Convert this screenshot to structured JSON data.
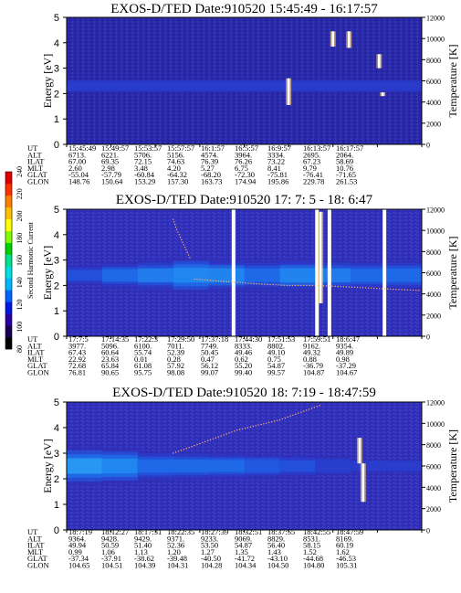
{
  "chart_data": [
    {
      "type": "heatmap",
      "title": "EXOS-D/TED   Date:910520  15:45:49 - 16:17:57",
      "ylabel": "Energy [eV]",
      "y2label": "Temperature [K]",
      "ylim": [
        0,
        5
      ],
      "y2lim": [
        0,
        12000
      ],
      "yticks": [
        "0",
        "1",
        "2",
        "3",
        "4",
        "5"
      ],
      "y2ticks": [
        "0",
        "2000",
        "4000",
        "6000",
        "8000",
        "10000",
        "12000"
      ],
      "band_profile": [
        0.18,
        0.18,
        0.18,
        0.19,
        0.18,
        0.18,
        0.18,
        0.19,
        0.18,
        0.18
      ],
      "band_center_ev": 2.3,
      "traces": [],
      "gaps": [],
      "spikes": [
        {
          "t": 0.625,
          "ev_low": 1.55,
          "ev_high": 2.6
        },
        {
          "t": 0.75,
          "ev_low": 3.85,
          "ev_high": 4.45
        },
        {
          "t": 0.795,
          "ev_low": 3.8,
          "ev_high": 4.45
        },
        {
          "t": 0.88,
          "ev_low": 3.0,
          "ev_high": 3.55
        },
        {
          "t": 0.89,
          "ev_low": 1.9,
          "ev_high": 2.05
        }
      ],
      "table": {
        "labels": [
          "UT",
          "ALT",
          "ILAT",
          "MLT",
          "GLAT",
          "GLON"
        ],
        "columns": [
          [
            "15:45:49",
            "6713.",
            "67.00",
            "2.60",
            "-55.04",
            "148.76"
          ],
          [
            "15:49:57",
            "6221.",
            "69.35",
            "2.98",
            "-57.79",
            "150.64"
          ],
          [
            "15:53:57",
            "5706.",
            "72.15",
            "3.48",
            "-60.84",
            "153.29"
          ],
          [
            "15:57:57",
            "5156.",
            "74.63",
            "4.20",
            "-64.32",
            "157.30"
          ],
          [
            "16:1:57",
            "4574.",
            "76.39",
            "5.27",
            "-68.20",
            "163.73"
          ],
          [
            "16:5:57",
            "3964.",
            "76.26",
            "6.75",
            "-72.30",
            "174.94"
          ],
          [
            "16:9:57",
            "3334.",
            "73.22",
            "8.41",
            "-75.81",
            "195.86"
          ],
          [
            "16:13:57",
            "2695.",
            "67.23",
            "9.79",
            "-76.41",
            "229.78"
          ],
          [
            "16:17:57",
            "2064.",
            "58.69",
            "10.76",
            "-71.65",
            "261.53"
          ]
        ]
      }
    },
    {
      "type": "heatmap",
      "title": "EXOS-D/TED   Date:910520  17: 7: 5 - 18: 6:47",
      "ylabel": "Energy [eV]",
      "y2label": "Temperature [K]",
      "ylim": [
        0,
        5
      ],
      "y2lim": [
        0,
        12000
      ],
      "yticks": [
        "0",
        "1",
        "2",
        "3",
        "4",
        "5"
      ],
      "y2ticks": [
        "0",
        "2000",
        "4000",
        "6000",
        "8000",
        "10000",
        "12000"
      ],
      "band_profile": [
        0.35,
        0.55,
        0.75,
        0.85,
        0.78,
        0.7,
        0.8,
        0.75,
        0.65,
        0.7
      ],
      "band_center_ev": 2.4,
      "traces": [
        {
          "x": [
            0.36,
            0.45,
            0.55,
            0.62,
            0.7,
            0.78,
            0.85,
            0.92,
            1.0
          ],
          "ev": [
            2.25,
            2.15,
            2.05,
            2.0,
            2.0,
            1.95,
            1.9,
            1.85,
            1.8
          ]
        },
        {
          "x": [
            0.3,
            0.31,
            0.32,
            0.33,
            0.34,
            0.35
          ],
          "ev": [
            4.6,
            4.2,
            3.9,
            3.6,
            3.3,
            3.0
          ]
        }
      ],
      "gaps": [
        0.47,
        0.705,
        0.74,
        0.895
      ],
      "spikes": [
        {
          "t": 0.715,
          "ev_low": 1.3,
          "ev_high": 4.9
        }
      ],
      "table": {
        "labels": [
          "UT",
          "ALT",
          "ILAT",
          "MLT",
          "GLAT",
          "GLON"
        ],
        "columns": [
          [
            "17:7:5",
            "3977.",
            "67.43",
            "22.92",
            "72.68",
            "76.81"
          ],
          [
            "17:14:35",
            "5096.",
            "60.64",
            "23.63",
            "65.84",
            "90.65"
          ],
          [
            "17:22:3",
            "6100.",
            "55.74",
            "0.01",
            "61.08",
            "95.75"
          ],
          [
            "17:29:50",
            "7011.",
            "52.39",
            "0.28",
            "57.92",
            "98.08"
          ],
          [
            "17:37:18",
            "7749.",
            "50.45",
            "0.47",
            "56.12",
            "99.07"
          ],
          [
            "17:44:30",
            "8333.",
            "49.46",
            "0.62",
            "55.20",
            "99.40"
          ],
          [
            "17:51:53",
            "8802.",
            "49.10",
            "0.75",
            "54.87",
            "99.57"
          ],
          [
            "17:59:51",
            "9162.",
            "49.32",
            "0.88",
            "-36.79",
            "104.87"
          ],
          [
            "18:6:47",
            "9354.",
            "49.89",
            "0.98",
            "-37.29",
            "104.67"
          ]
        ]
      },
      "colorbar": {
        "label": "Second Harmonic Current",
        "ticks": [
          "80",
          "100",
          "120",
          "140",
          "160",
          "180",
          "200",
          "220",
          "240"
        ],
        "colors": [
          "#000000",
          "#1a0050",
          "#2a00a0",
          "#0018e0",
          "#0064ff",
          "#00b4ff",
          "#00e0e0",
          "#00e090",
          "#00d000",
          "#80ff00",
          "#ffff00",
          "#ffc000",
          "#ff8000",
          "#ff3000",
          "#e00000"
        ]
      }
    },
    {
      "type": "heatmap",
      "title": "EXOS-D/TED   Date:910520  18: 7:19 - 18:47:59",
      "ylabel": "Energy [eV]",
      "y2label": "Temperature [K]",
      "ylim": [
        0,
        5
      ],
      "y2lim": [
        0,
        12000
      ],
      "yticks": [
        "0",
        "1",
        "2",
        "3",
        "4",
        "5"
      ],
      "y2ticks": [
        "0",
        "2000",
        "4000",
        "6000",
        "8000",
        "10000",
        "12000"
      ],
      "band_profile": [
        0.95,
        0.85,
        0.7,
        0.62,
        0.55,
        0.48,
        0.42,
        0.3,
        0.2,
        0.18
      ],
      "band_center_ev": 2.5,
      "traces": [
        {
          "x": [
            0.3,
            0.36,
            0.42,
            0.48,
            0.54,
            0.6,
            0.66,
            0.72
          ],
          "ev": [
            3.0,
            3.3,
            3.6,
            3.9,
            4.1,
            4.3,
            4.6,
            4.9
          ]
        }
      ],
      "gaps": [],
      "spikes": [
        {
          "t": 0.835,
          "ev_low": 1.1,
          "ev_high": 2.6
        },
        {
          "t": 0.825,
          "ev_low": 2.6,
          "ev_high": 3.6
        }
      ],
      "table": {
        "labels": [
          "UT",
          "ALT",
          "ILAT",
          "MLT",
          "GLAT",
          "GLON"
        ],
        "columns": [
          [
            "18:7:19",
            "9364.",
            "49.94",
            "0.99",
            "-37.34",
            "104.65"
          ],
          [
            "18:12:27",
            "9428.",
            "50.59",
            "1.06",
            "-37.91",
            "104.51"
          ],
          [
            "18:17:31",
            "9429.",
            "51.40",
            "1.13",
            "-38.62",
            "104.39"
          ],
          [
            "18:22:35",
            "9371.",
            "52.36",
            "1.20",
            "-39.48",
            "104.31"
          ],
          [
            "18:27:39",
            "9233.",
            "53.50",
            "1.27",
            "-40.50",
            "104.28"
          ],
          [
            "18:32:51",
            "9069.",
            "54.87",
            "1.35",
            "-41.72",
            "104.34"
          ],
          [
            "18:37:55",
            "8829.",
            "56.40",
            "1.43",
            "-43.10",
            "104.50"
          ],
          [
            "18:42:55",
            "8531.",
            "58.15",
            "1.52",
            "-44.68",
            "104.80"
          ],
          [
            "18:47:59",
            "8169.",
            "60.19",
            "1.62",
            "-46.53",
            "105.31"
          ]
        ]
      }
    }
  ]
}
